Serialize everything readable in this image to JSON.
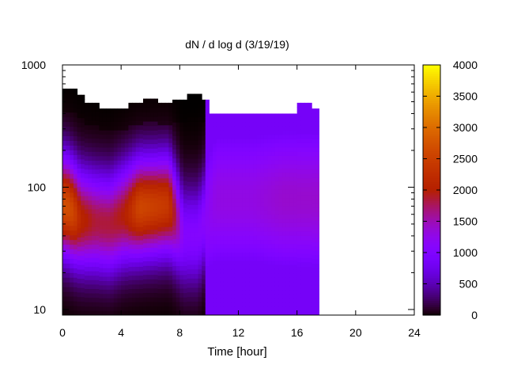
{
  "chart_data": {
    "type": "heatmap",
    "title": "dN / d log d (3/19/19)",
    "xlabel": "Time [hour]",
    "ylabel": "",
    "xlim": [
      0,
      24
    ],
    "ylim": [
      9,
      1000
    ],
    "y_scale": "log",
    "x_ticks": [
      0,
      4,
      8,
      12,
      16,
      20,
      24
    ],
    "x_tick_labels": [
      "0",
      "4",
      "8",
      "12",
      "16",
      "20",
      "24"
    ],
    "y_ticks": [
      10,
      100,
      1000
    ],
    "y_tick_labels": [
      "10",
      "100",
      "1000"
    ],
    "colorbar": {
      "min": 0,
      "max": 4000,
      "ticks": [
        0,
        500,
        1000,
        1500,
        2000,
        2500,
        3000,
        3500,
        4000
      ],
      "tick_labels": [
        "0",
        "500",
        "1000",
        "1500",
        "2000",
        "2500",
        "3000",
        "3500",
        "4000"
      ],
      "palette": "gnuplot"
    },
    "grid": false,
    "legend": "none",
    "mode_diameter_by_time": {
      "time_hour": [
        0.25,
        0.75,
        1.25,
        2.25,
        3.25,
        4.25,
        5.25,
        6.25,
        7.25,
        8.25,
        9.25,
        10.5,
        13,
        15,
        16,
        17
      ],
      "peak_diameter": [
        70,
        62,
        55,
        52,
        50,
        60,
        68,
        70,
        72,
        40,
        40,
        80,
        80,
        80,
        80,
        80
      ],
      "peak_value": [
        2700,
        2600,
        2100,
        1850,
        1850,
        2000,
        2600,
        2500,
        2400,
        1050,
        1050,
        1300,
        1300,
        1400,
        1400,
        1400
      ]
    },
    "upper_edge_by_time": {
      "time_hour": [
        0,
        1,
        1.5,
        2.5,
        4.5,
        5.5,
        6.5,
        7.5,
        8.5,
        9.5,
        10,
        15,
        16,
        17,
        17.5
      ],
      "max_diameter": [
        640,
        570,
        490,
        440,
        490,
        530,
        490,
        520,
        580,
        520,
        400,
        400,
        490,
        440,
        440
      ]
    },
    "data_end_hour": 17.5
  }
}
